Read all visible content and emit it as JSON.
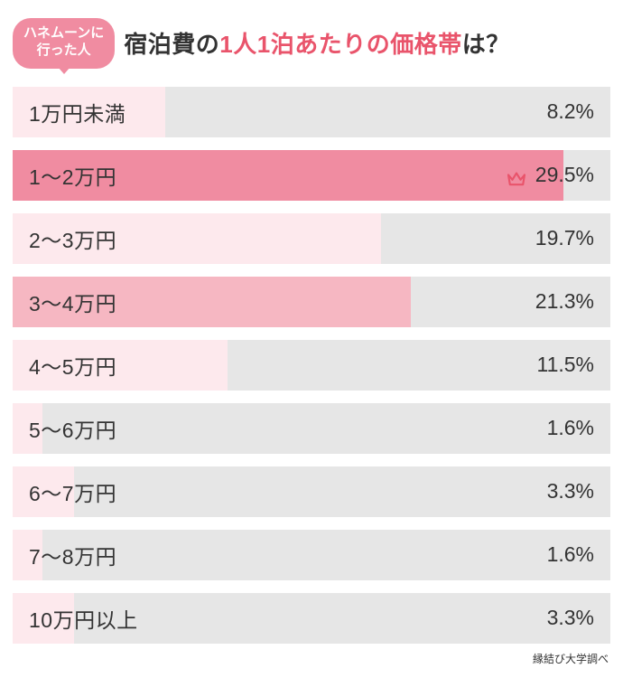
{
  "badge": {
    "line1": "ハネムーンに",
    "line2": "行った人"
  },
  "title": {
    "prefix": "宿泊費の",
    "highlight": "1人1泊あたりの価格帯",
    "suffix": "は？"
  },
  "chart": {
    "type": "bar-horizontal",
    "track_color": "#e6e6e6",
    "bar_colors": {
      "light": "#fde9ed",
      "mid": "#f6b7c2",
      "strong": "#f08ca1"
    },
    "crown_color": "#e9546b",
    "max_scale": 32,
    "rows": [
      {
        "label": "1万円未満",
        "value": 8.2,
        "display": "8.2%",
        "shade": "light",
        "crown": false,
        "bar_pct": 25.6
      },
      {
        "label": "1～2万円",
        "value": 29.5,
        "display": "29.5%",
        "shade": "strong",
        "crown": true,
        "bar_pct": 92.2
      },
      {
        "label": "2～3万円",
        "value": 19.7,
        "display": "19.7%",
        "shade": "light",
        "crown": false,
        "bar_pct": 61.6
      },
      {
        "label": "3～4万円",
        "value": 21.3,
        "display": "21.3%",
        "shade": "mid",
        "crown": false,
        "bar_pct": 66.6
      },
      {
        "label": "4～5万円",
        "value": 11.5,
        "display": "11.5%",
        "shade": "light",
        "crown": false,
        "bar_pct": 35.9
      },
      {
        "label": "5～6万円",
        "value": 1.6,
        "display": "1.6%",
        "shade": "light",
        "crown": false,
        "bar_pct": 5.0
      },
      {
        "label": "6～7万円",
        "value": 3.3,
        "display": "3.3%",
        "shade": "light",
        "crown": false,
        "bar_pct": 10.3
      },
      {
        "label": "7～8万円",
        "value": 1.6,
        "display": "1.6%",
        "shade": "light",
        "crown": false,
        "bar_pct": 5.0
      },
      {
        "label": "10万円以上",
        "value": 3.3,
        "display": "3.3%",
        "shade": "light",
        "crown": false,
        "bar_pct": 10.3
      }
    ]
  },
  "credit": "縁結び大学調べ"
}
